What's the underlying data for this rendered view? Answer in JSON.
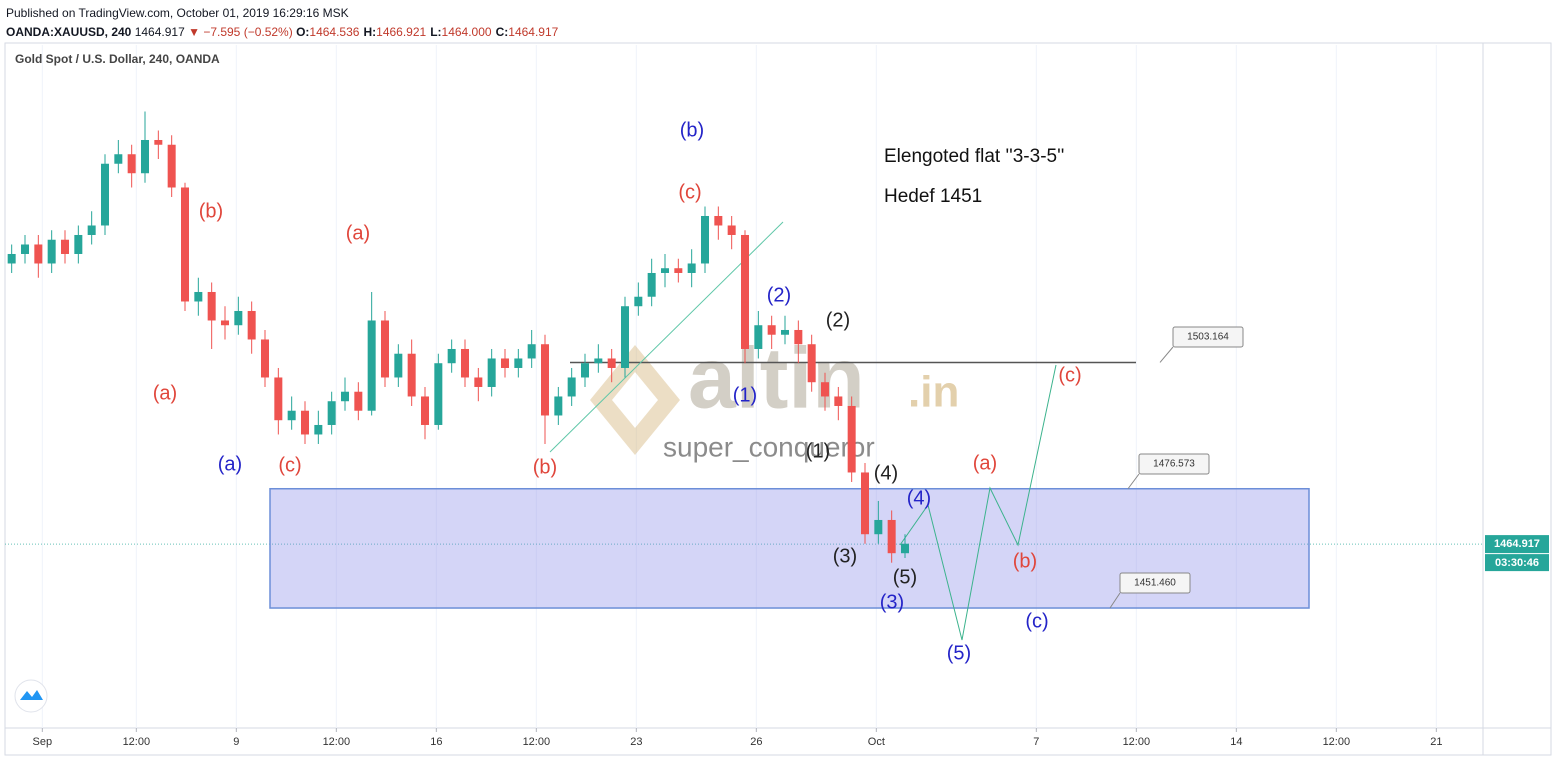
{
  "header": {
    "published": "Published on TradingView.com, October 01, 2019 16:29:16 MSK",
    "symbol": "OANDA:XAUUSD, 240",
    "last": "1464.917",
    "change": "▼ −7.595 (−0.52%)",
    "ohlc": [
      {
        "label": "O:",
        "value": "1464.536"
      },
      {
        "label": "H:",
        "value": "1466.921"
      },
      {
        "label": "L:",
        "value": "1464.000"
      },
      {
        "label": "C:",
        "value": "1464.917"
      }
    ]
  },
  "chart_data": {
    "type": "candlestick",
    "title": "Gold Spot / U.S. Dollar, 240, OANDA",
    "x": [
      1,
      3,
      5,
      7,
      9,
      11,
      13,
      15,
      17,
      19,
      21,
      23,
      25,
      27,
      29,
      31,
      33,
      35,
      37,
      39,
      41,
      43,
      45,
      47,
      49,
      51,
      53,
      55,
      57,
      59,
      61,
      63,
      65,
      67,
      69,
      71,
      73,
      75,
      77,
      79,
      81,
      83,
      85,
      87,
      89,
      91,
      93,
      95,
      97,
      99,
      101,
      103,
      105,
      107,
      109,
      111,
      113,
      115,
      117,
      119,
      121,
      123,
      125,
      127,
      129,
      131,
      133,
      135
    ],
    "open": [
      1524,
      1526,
      1528,
      1524,
      1529,
      1526,
      1530,
      1532,
      1545,
      1547,
      1543,
      1550,
      1549,
      1540,
      1516,
      1518,
      1512,
      1511,
      1514,
      1508,
      1500,
      1491,
      1493,
      1488,
      1490,
      1495,
      1497,
      1493,
      1512,
      1500,
      1505,
      1496,
      1490,
      1503,
      1506,
      1500,
      1498,
      1504,
      1502,
      1504,
      1507,
      1492,
      1496,
      1500,
      1503,
      1504,
      1502,
      1515,
      1517,
      1522,
      1523,
      1522,
      1524,
      1534,
      1532,
      1530,
      1506,
      1511,
      1509,
      1510,
      1507,
      1499,
      1496,
      1494,
      1480,
      1467,
      1470,
      1463
    ],
    "high": [
      1528,
      1530,
      1530,
      1531,
      1531,
      1532,
      1535,
      1547,
      1550,
      1549,
      1556,
      1552,
      1551,
      1541,
      1521,
      1520,
      1515,
      1517,
      1516,
      1510,
      1502,
      1496,
      1495,
      1493,
      1497,
      1500,
      1499,
      1518,
      1514,
      1507,
      1508,
      1498,
      1505,
      1508,
      1508,
      1502,
      1506,
      1506,
      1506,
      1510,
      1509,
      1498,
      1502,
      1505,
      1507,
      1506,
      1517,
      1520,
      1525,
      1526,
      1525,
      1527,
      1536,
      1536,
      1534,
      1531,
      1514,
      1513,
      1513,
      1512,
      1509,
      1501,
      1498,
      1496,
      1482,
      1474,
      1472,
      1467
    ],
    "low": [
      1522,
      1524,
      1521,
      1522,
      1524,
      1524,
      1528,
      1530,
      1543,
      1540,
      1541,
      1546,
      1538,
      1514,
      1513,
      1506,
      1508,
      1509,
      1505,
      1498,
      1488,
      1489,
      1486,
      1486,
      1488,
      1493,
      1491,
      1492,
      1498,
      1498,
      1494,
      1487,
      1489,
      1501,
      1498,
      1495,
      1496,
      1500,
      1500,
      1502,
      1486,
      1490,
      1494,
      1498,
      1501,
      1499,
      1500,
      1513,
      1515,
      1519,
      1520,
      1519,
      1522,
      1529,
      1527,
      1503,
      1504,
      1506,
      1507,
      1503,
      1497,
      1493,
      1491,
      1478,
      1465,
      1465,
      1461,
      1462
    ],
    "close": [
      1526,
      1528,
      1524,
      1529,
      1526,
      1530,
      1532,
      1545,
      1547,
      1543,
      1550,
      1549,
      1540,
      1516,
      1518,
      1512,
      1511,
      1514,
      1508,
      1500,
      1491,
      1493,
      1488,
      1490,
      1495,
      1497,
      1493,
      1512,
      1500,
      1505,
      1496,
      1490,
      1503,
      1506,
      1500,
      1498,
      1504,
      1502,
      1504,
      1507,
      1492,
      1496,
      1500,
      1503,
      1504,
      1502,
      1515,
      1517,
      1522,
      1523,
      1522,
      1524,
      1534,
      1532,
      1530,
      1506,
      1511,
      1509,
      1510,
      1507,
      1499,
      1496,
      1494,
      1480,
      1467,
      1470,
      1463,
      1465
    ],
    "up_color": "#26a69a",
    "down_color": "#ef5350",
    "xlim": [
      0,
      221.7
    ],
    "ylim": [
      1426.2,
      1570
    ],
    "xticks": [
      {
        "value": 5.6,
        "label": "Sep"
      },
      {
        "value": 19.7,
        "label": "12:00"
      },
      {
        "value": 34.7,
        "label": "9"
      },
      {
        "value": 49.7,
        "label": "12:00"
      },
      {
        "value": 64.7,
        "label": "16"
      },
      {
        "value": 79.7,
        "label": "12:00"
      },
      {
        "value": 94.7,
        "label": "23"
      },
      {
        "value": 112.7,
        "label": "26"
      },
      {
        "value": 130.7,
        "label": "Oct"
      },
      {
        "value": 154.7,
        "label": "7"
      },
      {
        "value": 169.7,
        "label": "12:00"
      },
      {
        "value": 184.7,
        "label": "14"
      },
      {
        "value": 199.7,
        "label": "12:00"
      },
      {
        "value": 214.7,
        "label": "21"
      }
    ],
    "grid": true,
    "last_price": 1464.917,
    "countdown": "03:30:46",
    "levels": [
      1503.164,
      1476.573,
      {
        "value": 1451.46,
        "label": "1451.460"
      }
    ],
    "annotations": [
      {
        "text": "(b)",
        "color": "#e0463b"
      },
      {
        "text": "(a)",
        "color": "#e0463b"
      },
      {
        "text": "(a)",
        "color": "#e0463b"
      },
      {
        "text": "(a)",
        "color": "#2424c8"
      },
      {
        "text": "(c)",
        "color": "#e0463b"
      },
      {
        "text": "(b)",
        "color": "#e0463b"
      },
      {
        "text": "(b)",
        "color": "#2424c8"
      },
      {
        "text": "(c)",
        "color": "#e0463b"
      },
      {
        "text": "(2)",
        "color": "#2424c8"
      },
      {
        "text": "(2)",
        "color": "#222222"
      },
      {
        "text": "(1)",
        "color": "#2424c8"
      },
      {
        "text": "(1)",
        "color": "#222222"
      },
      {
        "text": "(4)",
        "color": "#222222"
      },
      {
        "text": "(4)",
        "color": "#2424c8"
      },
      {
        "text": "(3)",
        "color": "#222222"
      },
      {
        "text": "(5)",
        "color": "#222222"
      },
      {
        "text": "(3)",
        "color": "#2424c8"
      },
      {
        "text": "(5)",
        "color": "#2424c8"
      },
      {
        "text": "(a)",
        "color": "#e0463b"
      },
      {
        "text": "(b)",
        "color": "#e0463b"
      },
      {
        "text": "(c)",
        "color": "#e0463b"
      },
      {
        "text": "(c)",
        "color": "#2424c8"
      }
    ],
    "notes": [
      "Elengoted flat ''3-3-5''",
      "Hedef 1451"
    ],
    "watermark": [
      "altin",
      ".in",
      "super_conqueror"
    ]
  }
}
